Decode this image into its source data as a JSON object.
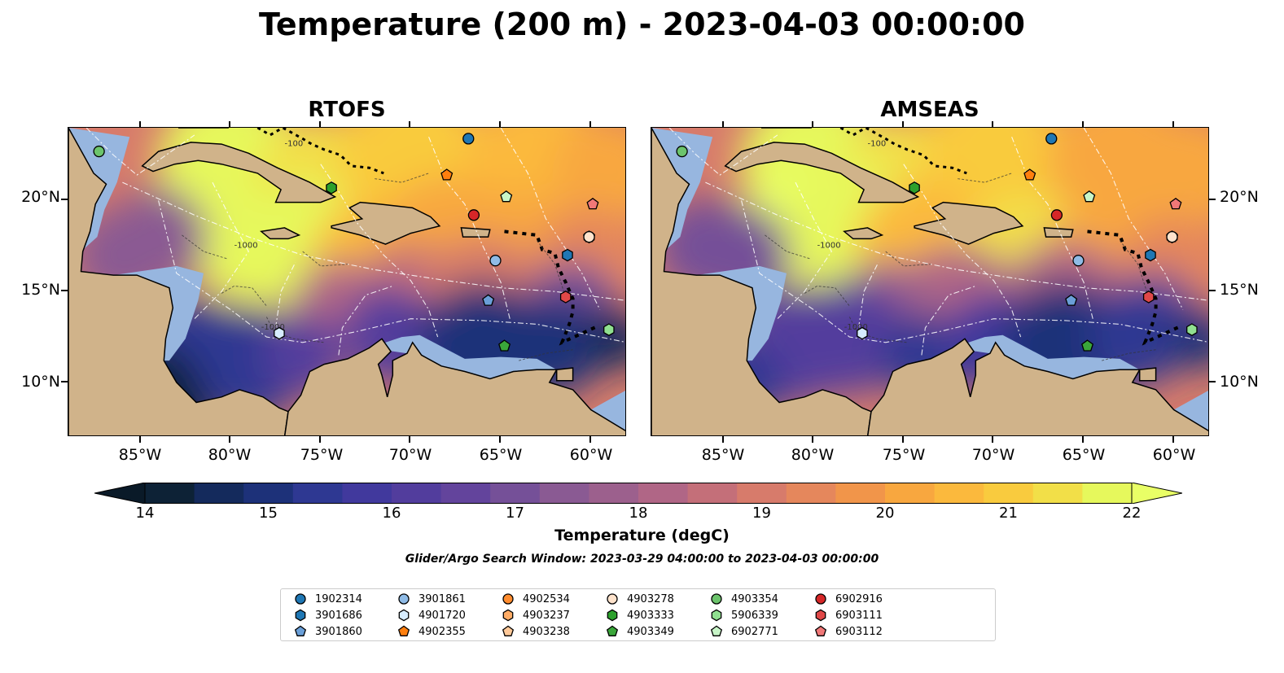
{
  "title": "Temperature (200 m) - 2023-04-03 00:00:00",
  "panels": [
    {
      "title": "RTOFS"
    },
    {
      "title": "AMSEAS"
    }
  ],
  "lat_labels": [
    "20°N",
    "15°N",
    "10°N"
  ],
  "lon_labels": [
    "85°W",
    "80°W",
    "75°W",
    "70°W",
    "65°W",
    "60°W"
  ],
  "colorbar": {
    "label": "Temperature (degC)",
    "min": 14,
    "max": 22,
    "step": 0.5,
    "ticks": [
      "14",
      "15",
      "16",
      "17",
      "18",
      "19",
      "20",
      "21",
      "22"
    ],
    "colors": [
      "#0d2236",
      "#142a5c",
      "#1d3179",
      "#2e3892",
      "#41399d",
      "#523d9d",
      "#63449c",
      "#755098",
      "#8a5a93",
      "#9c608d",
      "#b06686",
      "#c46f79",
      "#d77b6b",
      "#e5875c",
      "#f1954a",
      "#f8a73f",
      "#fbb93d",
      "#f9cb3e",
      "#f2df48",
      "#e6f85c"
    ],
    "under_color": "#0a1a28",
    "over_color": "#e9ff66"
  },
  "search_window": "Glider/Argo Search Window: 2023-03-29 04:00:00 to 2023-04-03 00:00:00",
  "map": {
    "extent_lon": [
      -89,
      -58
    ],
    "extent_lat": [
      7,
      24
    ],
    "land_color": "#d0b38a",
    "shelf_color": "#97b6df",
    "contour_labels": [
      "-100",
      "-1000"
    ]
  },
  "floats": [
    {
      "id": "1902314",
      "marker": "circle",
      "color": "#1f77b4",
      "lon": -66.8,
      "lat": 23.4
    },
    {
      "id": "3901686",
      "marker": "hexagon",
      "color": "#1f77b4",
      "lon": -61.3,
      "lat": 17.0
    },
    {
      "id": "3901860",
      "marker": "pentagon",
      "color": "#6a9fd8",
      "lon": -65.7,
      "lat": 14.5
    },
    {
      "id": "3901861",
      "marker": "circle",
      "color": "#8fbbe6",
      "lon": -65.3,
      "lat": 16.7
    },
    {
      "id": "4901720",
      "marker": "hexagon",
      "color": "#d6ecff",
      "lon": -77.3,
      "lat": 12.7
    },
    {
      "id": "4902355",
      "marker": "pentagon",
      "color": "#ff7f0e",
      "lon": -68.0,
      "lat": 21.4
    },
    {
      "id": "4902534",
      "marker": "circle",
      "color": "#ff8c2e",
      "lon": -60.1,
      "lat": 18.0
    },
    {
      "id": "4903237",
      "marker": "hexagon",
      "color": "#ffac66",
      "lon": -60.1,
      "lat": 18.0
    },
    {
      "id": "4903238",
      "marker": "pentagon",
      "color": "#ffc999",
      "lon": -60.1,
      "lat": 18.0
    },
    {
      "id": "4903278",
      "marker": "circle",
      "color": "#ffe3cc",
      "lon": -60.1,
      "lat": 18.0
    },
    {
      "id": "4903333",
      "marker": "hexagon",
      "color": "#2ca02c",
      "lon": -74.4,
      "lat": 20.7
    },
    {
      "id": "4903349",
      "marker": "pentagon",
      "color": "#3aa63a",
      "lon": -64.8,
      "lat": 12.0
    },
    {
      "id": "4903354",
      "marker": "circle",
      "color": "#6cc46c",
      "lon": -87.3,
      "lat": 22.7
    },
    {
      "id": "5906339",
      "marker": "hexagon",
      "color": "#90e090",
      "lon": -59.0,
      "lat": 12.9
    },
    {
      "id": "6902771",
      "marker": "pentagon",
      "color": "#c8f5c8",
      "lon": -64.7,
      "lat": 20.2
    },
    {
      "id": "6902916",
      "marker": "circle",
      "color": "#d62728",
      "lon": -66.5,
      "lat": 19.2
    },
    {
      "id": "6903111",
      "marker": "hexagon",
      "color": "#e04848",
      "lon": -61.4,
      "lat": 14.7
    },
    {
      "id": "6903112",
      "marker": "pentagon",
      "color": "#f07878",
      "lon": -59.9,
      "lat": 19.8
    }
  ]
}
